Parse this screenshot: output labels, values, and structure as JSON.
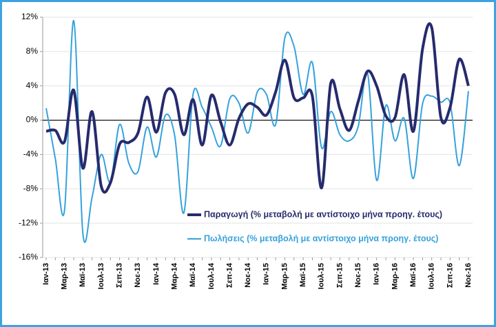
{
  "chart_data": {
    "type": "line",
    "categories": [
      "Ιαν-13",
      null,
      "Μαρ-13",
      null,
      "Μαϊ-13",
      null,
      "Ιουλ-13",
      null,
      "Σεπ-13",
      null,
      "Νοε-13",
      null,
      "Ιαν-14",
      null,
      "Μαρ-14",
      null,
      "Μαϊ-14",
      null,
      "Ιουλ-14",
      null,
      "Σεπ-14",
      null,
      "Νοε-14",
      null,
      "Ιαν-15",
      null,
      "Μαρ-15",
      null,
      "Μαϊ-15",
      null,
      "Ιουλ-15",
      null,
      "Σεπ-15",
      null,
      "Νοε-15",
      null,
      "Ιαν-16",
      null,
      "Μαρ-16",
      null,
      "Μαϊ-16",
      null,
      "Ιουλ-16",
      null,
      "Σεπ-16",
      null,
      "Νοε-16"
    ],
    "series": [
      {
        "name": "Παραγωγή (% μεταβολή με αντίστοιχο μήνα προηγ. έτους)",
        "color": "#262b6e",
        "values": [
          -1.3,
          -1.2,
          -2.5,
          3.5,
          -5.6,
          1.0,
          -7.7,
          -7.3,
          -2.8,
          -2.6,
          -1.5,
          2.7,
          -1.4,
          3.2,
          3.0,
          -1.7,
          2.4,
          -2.9,
          2.9,
          -0.2,
          -2.9,
          0.2,
          1.9,
          1.5,
          0.6,
          3.3,
          7.0,
          2.6,
          2.6,
          2.8,
          -7.9,
          4.3,
          1.3,
          -1.2,
          2.2,
          5.7,
          4.0,
          0.5,
          0.3,
          5.3,
          -1.3,
          8.3,
          10.8,
          0.3,
          1.5,
          7.1,
          4.0
        ]
      },
      {
        "name": "Πωλήσεις (% μεταβολή με αντίστοιχο μήνα προηγ. έτους)",
        "color": "#35a2dc",
        "values": [
          1.4,
          -4.5,
          -10.5,
          11.6,
          -13.2,
          -9.0,
          -4.0,
          -7.2,
          -0.5,
          -5.0,
          -6.0,
          -0.8,
          -4.3,
          0.6,
          -1.8,
          -10.8,
          3.0,
          1.5,
          -0.8,
          -3.0,
          2.5,
          2.0,
          -1.5,
          3.3,
          3.0,
          -0.5,
          9.6,
          8.6,
          3.0,
          6.7,
          -3.2,
          1.0,
          -1.7,
          -2.4,
          -0.7,
          5.5,
          -7.0,
          1.7,
          -2.4,
          0.2,
          -6.8,
          1.9,
          2.8,
          2.1,
          2.0,
          -5.3,
          3.4
        ]
      }
    ],
    "ylim": [
      -16,
      12
    ],
    "yticks": [
      {
        "value": -16,
        "label": "-16%"
      },
      {
        "value": -12,
        "label": "-12%"
      },
      {
        "value": -8,
        "label": "-8%"
      },
      {
        "value": -4,
        "label": "-4%"
      },
      {
        "value": 0,
        "label": "0%"
      },
      {
        "value": 4,
        "label": "4%"
      },
      {
        "value": 8,
        "label": "8%"
      },
      {
        "value": 12,
        "label": "12%"
      }
    ],
    "grid": true,
    "legend": "lower right"
  }
}
